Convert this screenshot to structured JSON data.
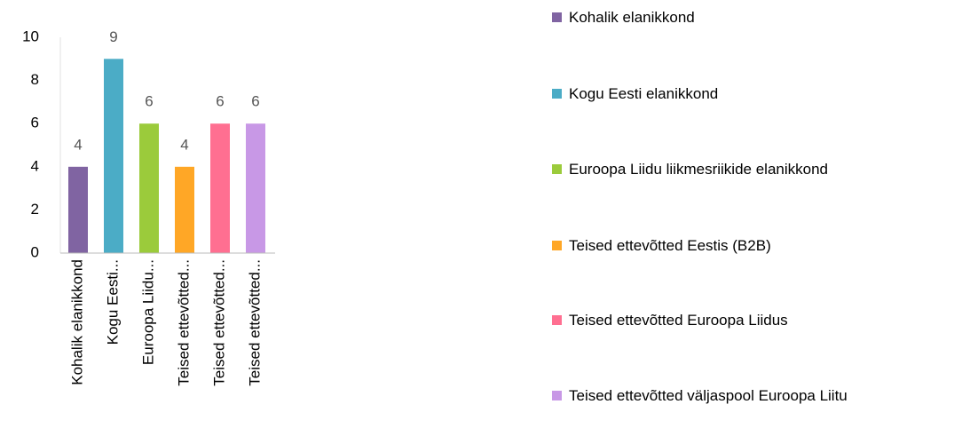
{
  "chart_data": {
    "type": "bar",
    "categories": [
      "Kohalik elanikkond",
      "Kogu Eesti...",
      "Euroopa Liidu...",
      "Teised ettevõtted...",
      "Teised ettevõtted...",
      "Teised ettevõtted..."
    ],
    "values": [
      4,
      9,
      6,
      4,
      6,
      6
    ],
    "colors": [
      "#8064a2",
      "#4bacc6",
      "#9bcb3b",
      "#ffa726",
      "#ff6f91",
      "#c898e6"
    ],
    "legend": [
      "Kohalik elanikkond",
      "Kogu Eesti elanikkond",
      "Euroopa Liidu liikmesriikide elanikkond",
      "Teised ettevõtted Eestis (B2B)",
      "Teised ettevõtted Euroopa Liidus",
      "Teised ettevõtted väljaspool Euroopa Liitu"
    ],
    "ylim": [
      0,
      10
    ],
    "yticks": [
      0,
      2,
      4,
      6,
      8,
      10
    ],
    "grid": false
  }
}
